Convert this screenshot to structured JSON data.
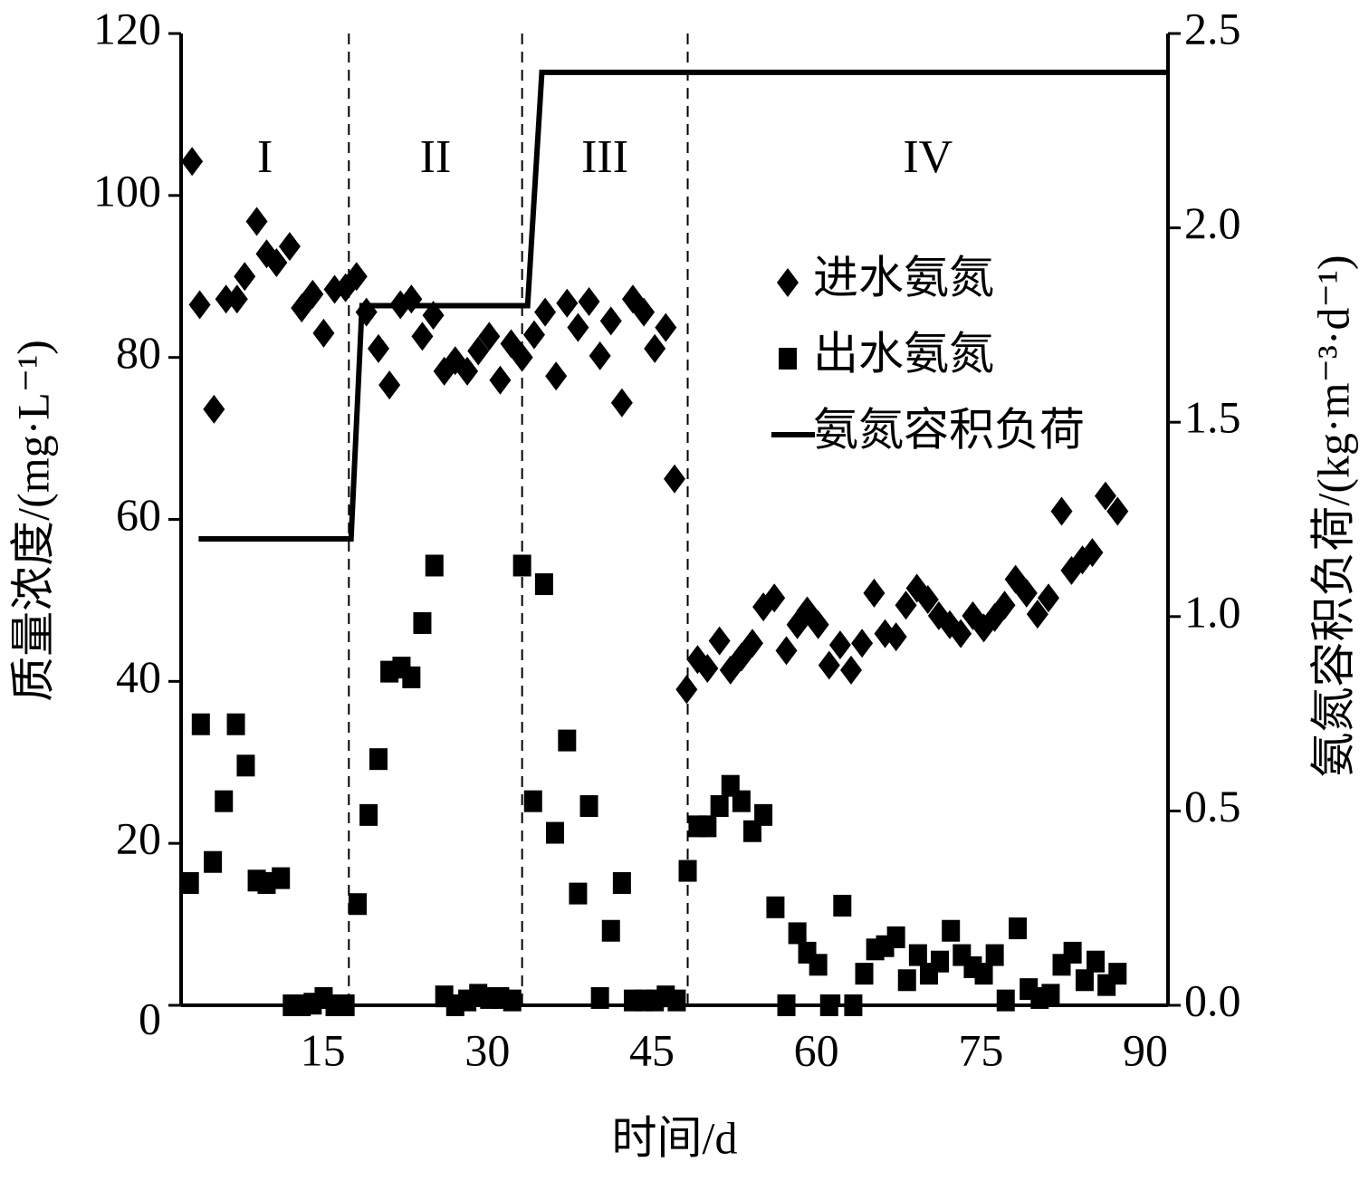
{
  "chart_data": {
    "type": "scatter",
    "x_label": "时间/d",
    "y_label": "质量浓度/(mg·L⁻¹)",
    "y2_label": "氨氮容积负荷/(kg·m⁻³·d⁻¹)",
    "xlim": [
      0,
      90
    ],
    "xticks": [
      15,
      30,
      45,
      60,
      75,
      90
    ],
    "ylim": [
      0,
      120
    ],
    "yticks": [
      0,
      20,
      40,
      60,
      80,
      100,
      120
    ],
    "y2lim": [
      0,
      2.5
    ],
    "y2ticks": [
      {
        "value": 0,
        "label": "0.0"
      },
      0.5,
      {
        "value": 1,
        "label": "1.0"
      },
      1.5,
      {
        "value": 2,
        "label": "2.0"
      },
      2.5
    ],
    "phase_labels": [
      "I",
      "II",
      "III",
      "IV"
    ],
    "phase_boundaries": [
      15.3,
      31.1,
      46.2
    ],
    "grid": false,
    "legend_position": "upper right",
    "series": [
      {
        "name": "进水氨氮",
        "type": "scatter",
        "marker": "diamond",
        "color": "#000000",
        "x": [
          1,
          1.7,
          3,
          4.1,
          5.1,
          5.8,
          6.9,
          7.8,
          8.7,
          9.9,
          11,
          12,
          13,
          14,
          15,
          16,
          16.9,
          18,
          19,
          20,
          21,
          22,
          23,
          24,
          25,
          26.1,
          27.1,
          28.1,
          29.1,
          30.1,
          31.1,
          32.2,
          33.2,
          34.2,
          35.2,
          36.2,
          37.2,
          38.2,
          39.2,
          40.2,
          41.2,
          42.2,
          43.2,
          44.2,
          45,
          46.1,
          47.1,
          48,
          49.1,
          50.1,
          51.1,
          52.1,
          53.1,
          54.1,
          55.2,
          56.2,
          57.1,
          58.1,
          59.1,
          60.1,
          61.1,
          62.1,
          63.2,
          64.2,
          65.2,
          66.1,
          67.1,
          68.1,
          69.1,
          70.1,
          71.1,
          72.2,
          73.2,
          74.2,
          75.1,
          76.1,
          77.1,
          78.1,
          79.1,
          80.3,
          81.2,
          82.2,
          83.1,
          84.3,
          85.4
        ],
        "values": [
          104.2,
          86.5,
          73.6,
          87.2,
          87.2,
          90,
          96.8,
          92.8,
          91.7,
          93.7,
          86.1,
          87.8,
          83,
          88.4,
          88.6,
          90,
          85.6,
          81.1,
          76.6,
          86.5,
          87.2,
          82.6,
          85.2,
          78.3,
          79.6,
          78.3,
          80.8,
          82.6,
          77.2,
          81.7,
          80,
          82.8,
          85.6,
          77.7,
          86.7,
          83.7,
          86.9,
          80.2,
          84.5,
          74.4,
          87.2,
          85.6,
          81.1,
          83.7,
          65,
          39,
          42.7,
          41.6,
          45,
          41.4,
          43,
          44.7,
          49.2,
          50.3,
          43.8,
          47,
          48.7,
          47,
          42,
          44.5,
          41.4,
          44.7,
          50.9,
          45.9,
          45.5,
          49.4,
          51.5,
          50.1,
          48.1,
          47,
          45.9,
          48.1,
          46.6,
          47.9,
          49.4,
          52.6,
          50.9,
          48.3,
          50.3,
          61,
          53.7,
          55,
          55.9,
          62.9,
          61
        ]
      },
      {
        "name": "出水氨氮",
        "type": "scatter",
        "marker": "square",
        "color": "#000000",
        "x": [
          0.8,
          1.8,
          2.9,
          3.9,
          5,
          5.9,
          6.9,
          7.8,
          9.1,
          10.1,
          11,
          12,
          13,
          14,
          15,
          16.1,
          17.1,
          18,
          19,
          20.1,
          21,
          22,
          23.1,
          24,
          25,
          26.1,
          27.1,
          28.1,
          29.1,
          30.2,
          31.1,
          32.1,
          33.1,
          34.1,
          35.2,
          36.2,
          37.2,
          38.2,
          39.2,
          40.2,
          41.2,
          42.2,
          43.2,
          44.2,
          45.2,
          46.2,
          47.1,
          48,
          49.1,
          50.1,
          51.1,
          52.1,
          53.1,
          54.2,
          55.2,
          56.2,
          57.1,
          58.1,
          59.1,
          60.3,
          61.3,
          62.3,
          63.3,
          64.2,
          65.2,
          66.2,
          67.2,
          68.2,
          69.2,
          70.2,
          71.2,
          72.2,
          73.2,
          74.2,
          75.2,
          76.3,
          77.3,
          78.3,
          79.3,
          80.3,
          81.3,
          82.4,
          83.4,
          84.4,
          85.4
        ],
        "values": [
          15.1,
          34.7,
          17.7,
          25.2,
          34.7,
          29.6,
          15.4,
          15.1,
          15.7,
          0,
          0,
          0.2,
          0.9,
          0,
          0,
          12.5,
          23.5,
          30.4,
          41.2,
          41.7,
          40.5,
          47.2,
          54.3,
          1.1,
          0,
          0.6,
          1.3,
          0.9,
          0.9,
          0.6,
          54.3,
          25.2,
          52,
          21.3,
          32.7,
          13.8,
          24.6,
          0.9,
          9.2,
          15.1,
          0.6,
          0.6,
          0.6,
          1.1,
          0.6,
          16.6,
          22.1,
          22.1,
          24.6,
          27.1,
          25.2,
          21.5,
          23.5,
          12.1,
          0,
          8.9,
          6.5,
          5,
          0,
          12.3,
          0,
          3.9,
          6.9,
          7.3,
          8.4,
          3.1,
          6.2,
          3.9,
          5.4,
          9.2,
          6.2,
          4.7,
          3.9,
          6.2,
          0.6,
          9.5,
          2,
          0.9,
          1.3,
          5,
          6.5,
          3.1,
          5.4,
          2.5,
          3.9
        ]
      },
      {
        "name": "氨氮容积负荷",
        "type": "line",
        "axis": "y2",
        "color": "#000000",
        "x": [
          1.6,
          15.5,
          16.5,
          31.6,
          32.9,
          90
        ],
        "values": [
          1.2,
          1.2,
          1.8,
          1.8,
          2.4,
          2.4
        ]
      }
    ]
  }
}
